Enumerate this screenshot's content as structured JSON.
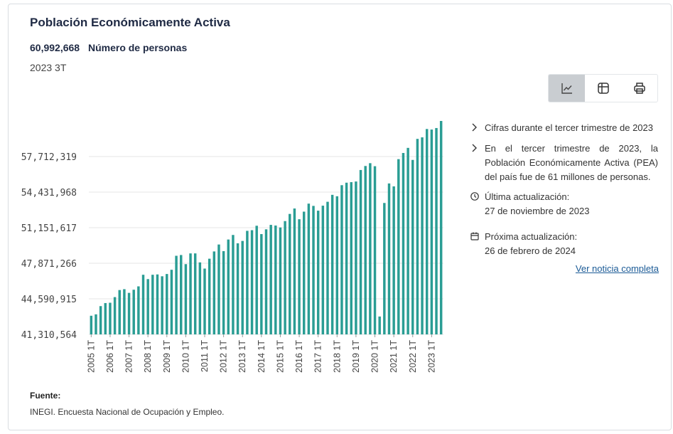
{
  "card": {
    "title": "Población Económicamente Activa",
    "value": "60,992,668",
    "unit": "Número de personas",
    "period": "2023 3T"
  },
  "toolbar": {
    "buttons": [
      {
        "name": "chart-view-button",
        "icon": "line-chart-icon",
        "active": true
      },
      {
        "name": "table-view-button",
        "icon": "table-icon",
        "active": false
      },
      {
        "name": "print-button",
        "icon": "printer-icon",
        "active": false
      }
    ]
  },
  "info": {
    "items": [
      {
        "icon": "chevron-right-icon",
        "text": "Cifras durante el tercer trimestre de 2023"
      },
      {
        "icon": "chevron-right-icon",
        "text": "En el tercer trimestre de 2023, la Población Económicamente Activa (PEA) del país fue de 61 millones de personas."
      }
    ],
    "last_update_label": "Última actualización:",
    "last_update_date": "27 de noviembre de 2023",
    "next_update_label": "Próxima actualización:",
    "next_update_date": "26 de febrero de 2024",
    "link": "Ver noticia completa"
  },
  "source": {
    "label": "Fuente:",
    "text": "INEGI. Encuesta Nacional de Ocupación y Empleo."
  },
  "colors": {
    "bar": "#2a9d94",
    "title": "#1f2a44",
    "link": "#1a5a96",
    "grid": "#e6e6e6"
  },
  "chart_data": {
    "type": "bar",
    "title": "",
    "xlabel": "",
    "ylabel": "",
    "grid": true,
    "ylim": [
      41310564,
      60992668
    ],
    "yticks": [
      41310564,
      44590915,
      47871266,
      51151617,
      54431968,
      57712319
    ],
    "ytick_labels": [
      "41,310,564",
      "44,590,915",
      "47,871,266",
      "51,151,617",
      "54,431,968",
      "57,712,319"
    ],
    "x_tick_labels": [
      "2005 1T",
      "2006 1T",
      "2007 1T",
      "2008 1T",
      "2009 1T",
      "2010 1T",
      "2011 1T",
      "2012 1T",
      "2013 1T",
      "2014 1T",
      "2015 1T",
      "2016 1T",
      "2017 1T",
      "2018 1T",
      "2019 1T",
      "2020 1T",
      "2021 1T",
      "2022 1T",
      "2023 1T"
    ],
    "categories": [
      "2005 1T",
      "2005 2T",
      "2005 3T",
      "2005 4T",
      "2006 1T",
      "2006 2T",
      "2006 3T",
      "2006 4T",
      "2007 1T",
      "2007 2T",
      "2007 3T",
      "2007 4T",
      "2008 1T",
      "2008 2T",
      "2008 3T",
      "2008 4T",
      "2009 1T",
      "2009 2T",
      "2009 3T",
      "2009 4T",
      "2010 1T",
      "2010 2T",
      "2010 3T",
      "2010 4T",
      "2011 1T",
      "2011 2T",
      "2011 3T",
      "2011 4T",
      "2012 1T",
      "2012 2T",
      "2012 3T",
      "2012 4T",
      "2013 1T",
      "2013 2T",
      "2013 3T",
      "2013 4T",
      "2014 1T",
      "2014 2T",
      "2014 3T",
      "2014 4T",
      "2015 1T",
      "2015 2T",
      "2015 3T",
      "2015 4T",
      "2016 1T",
      "2016 2T",
      "2016 3T",
      "2016 4T",
      "2017 1T",
      "2017 2T",
      "2017 3T",
      "2017 4T",
      "2018 1T",
      "2018 2T",
      "2018 3T",
      "2018 4T",
      "2019 1T",
      "2019 2T",
      "2019 3T",
      "2019 4T",
      "2020 1T",
      "2020 2T",
      "2020 3T",
      "2020 4T",
      "2021 1T",
      "2021 2T",
      "2021 3T",
      "2021 4T",
      "2022 1T",
      "2022 2T",
      "2022 3T",
      "2022 4T",
      "2023 1T",
      "2023 2T",
      "2023 3T"
    ],
    "values": [
      43030000,
      43160000,
      43920000,
      44200000,
      44230000,
      44750000,
      45400000,
      45480000,
      45140000,
      45430000,
      45740000,
      46810000,
      46410000,
      46810000,
      46840000,
      46670000,
      46880000,
      47270000,
      48560000,
      48630000,
      47790000,
      48780000,
      48780000,
      47950000,
      47380000,
      48290000,
      48960000,
      49600000,
      48990000,
      50060000,
      50480000,
      49710000,
      49930000,
      50860000,
      50920000,
      51330000,
      50560000,
      51000000,
      51410000,
      51350000,
      51170000,
      51760000,
      52420000,
      52920000,
      51930000,
      52630000,
      53370000,
      53160000,
      52720000,
      53180000,
      53540000,
      54180000,
      54050000,
      55070000,
      55300000,
      55350000,
      55410000,
      56470000,
      56840000,
      57100000,
      56820000,
      42960000,
      53430000,
      55230000,
      54960000,
      57470000,
      58040000,
      58510000,
      57400000,
      59340000,
      59480000,
      60250000,
      60200000,
      60340000,
      60992668
    ]
  }
}
